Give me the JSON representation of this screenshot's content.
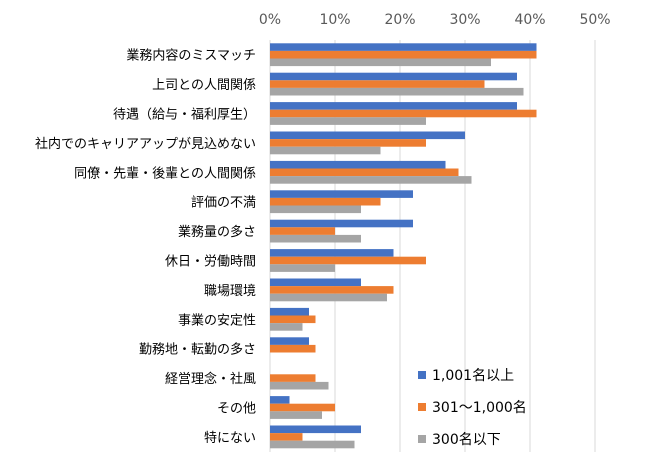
{
  "chart_data": {
    "type": "bar",
    "orientation": "horizontal",
    "title": "",
    "xlabel": "",
    "ylabel": "",
    "xlim": [
      0,
      50
    ],
    "x_ticks": [
      0,
      10,
      20,
      30,
      40,
      50
    ],
    "x_tick_labels": [
      "0%",
      "10%",
      "20%",
      "30%",
      "40%",
      "50%"
    ],
    "grid": true,
    "legend_position": "bottom-right",
    "categories": [
      "業務内容のミスマッチ",
      "上司との人間関係",
      "待遇（給与・福利厚生）",
      "社内でのキャリアアップが見込めない",
      "同僚・先輩・後輩との人間関係",
      "評価の不満",
      "業務量の多さ",
      "休日・労働時間",
      "職場環境",
      "事業の安定性",
      "勤務地・転勤の多さ",
      "経営理念・社風",
      "その他",
      "特にない"
    ],
    "series": [
      {
        "name": "1,001名以上",
        "color": "#4472C4",
        "values": [
          41,
          38,
          38,
          30,
          27,
          22,
          22,
          19,
          14,
          6,
          6,
          0,
          3,
          14
        ]
      },
      {
        "name": "301～1,000名",
        "color": "#ED7D31",
        "values": [
          41,
          33,
          41,
          24,
          29,
          17,
          10,
          24,
          19,
          7,
          7,
          7,
          10,
          5
        ]
      },
      {
        "name": "300名以下",
        "color": "#A5A5A5",
        "values": [
          34,
          39,
          24,
          17,
          31,
          14,
          14,
          10,
          18,
          5,
          0,
          9,
          8,
          13
        ]
      }
    ]
  }
}
